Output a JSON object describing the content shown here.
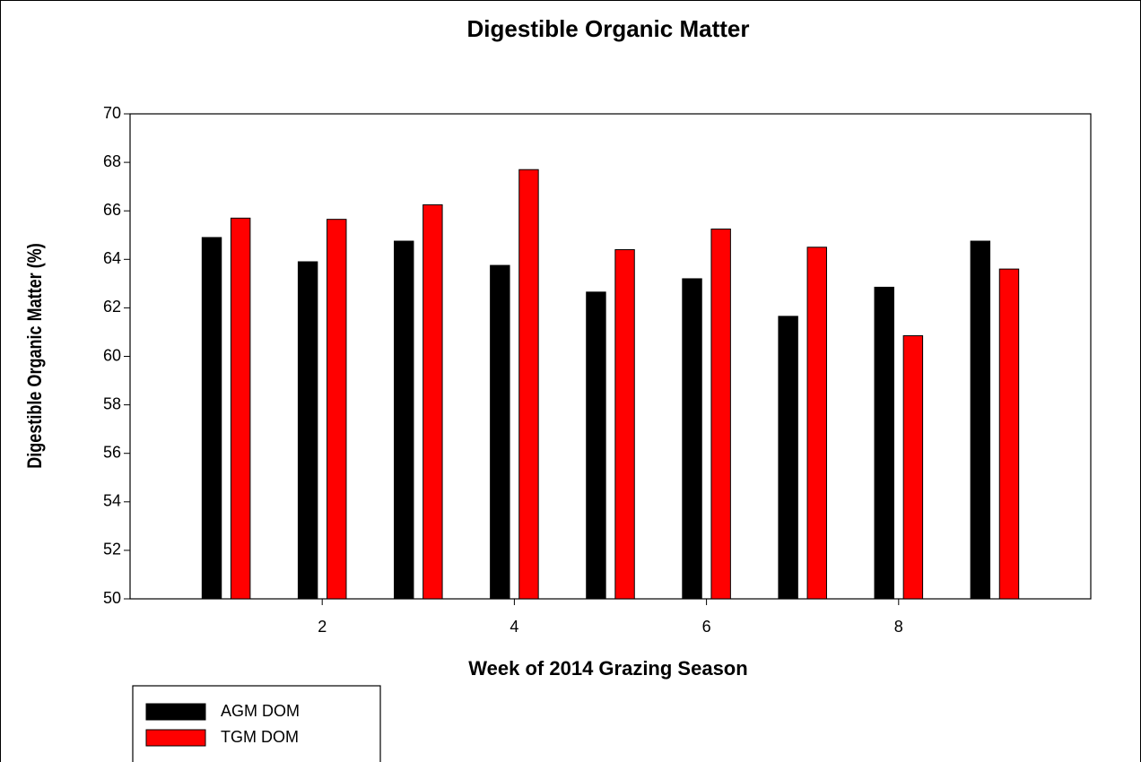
{
  "chart_data": {
    "type": "bar",
    "title": "Digestible Organic Matter",
    "x_label": "Week of 2014 Grazing Season",
    "y_label": "Digestible Organic Matter (%)",
    "x": [
      1,
      2,
      3,
      4,
      5,
      6,
      7,
      8,
      9
    ],
    "series": [
      {
        "name": "AGM DOM",
        "color": "#000000",
        "values": [
          64.9,
          63.9,
          64.75,
          63.75,
          62.65,
          63.2,
          61.65,
          62.85,
          64.75
        ]
      },
      {
        "name": "TGM DOM",
        "color": "#ff0000",
        "values": [
          65.7,
          65.65,
          66.25,
          67.7,
          64.4,
          65.25,
          64.5,
          60.85,
          63.6
        ]
      }
    ],
    "xlim": [
      0,
      10
    ],
    "xticks": [
      2,
      4,
      6,
      8
    ],
    "ylim": [
      50,
      70
    ],
    "yticks": [
      50,
      52,
      54,
      56,
      58,
      60,
      62,
      64,
      66,
      68,
      70
    ],
    "legend": "bottom-left",
    "grid": false
  }
}
